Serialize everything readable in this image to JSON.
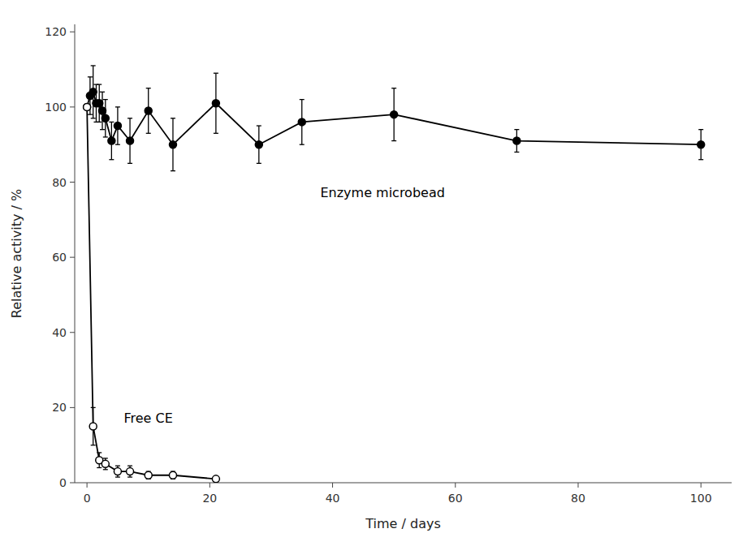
{
  "chart_data": {
    "type": "line",
    "xlabel": "Time  /  days",
    "ylabel": "Relative activity  /  %",
    "xlim": [
      -2,
      105
    ],
    "ylim": [
      0,
      122
    ],
    "xticks": [
      0,
      20,
      40,
      60,
      80,
      100
    ],
    "yticks": [
      0,
      20,
      40,
      60,
      80,
      100,
      120
    ],
    "grid": false,
    "series": [
      {
        "color": "#000000",
        "marker": "filled-circle",
        "line_style": "solid",
        "x": [
          0,
          0.5,
          1,
          1.5,
          2,
          2.5,
          3,
          4,
          5,
          7,
          10,
          14,
          21,
          28,
          35,
          50,
          70,
          100
        ],
        "values": [
          100,
          103,
          104,
          101,
          101,
          99,
          97,
          91,
          95,
          91,
          99,
          90,
          101,
          90,
          96,
          98,
          91,
          90
        ],
        "errors": [
          0,
          5,
          7,
          5,
          5,
          5,
          5,
          5,
          5,
          6,
          6,
          7,
          8,
          5,
          6,
          7,
          3,
          4
        ]
      },
      {
        "color": "#000000",
        "marker": "open-circle",
        "line_style": "solid",
        "x": [
          0,
          1,
          2,
          3,
          5,
          7,
          10,
          14,
          21
        ],
        "values": [
          100,
          15,
          6,
          5,
          3,
          3,
          2,
          2,
          1
        ],
        "errors": [
          0,
          5,
          2,
          1.5,
          1.5,
          1.5,
          1,
          1,
          0.5
        ]
      }
    ],
    "annotations": [
      {
        "text": "Enzyme microbead",
        "x": 38,
        "y": 76,
        "color": "#000000"
      },
      {
        "text": "Free CE",
        "x": 6,
        "y": 16,
        "color": "#000000"
      }
    ]
  }
}
